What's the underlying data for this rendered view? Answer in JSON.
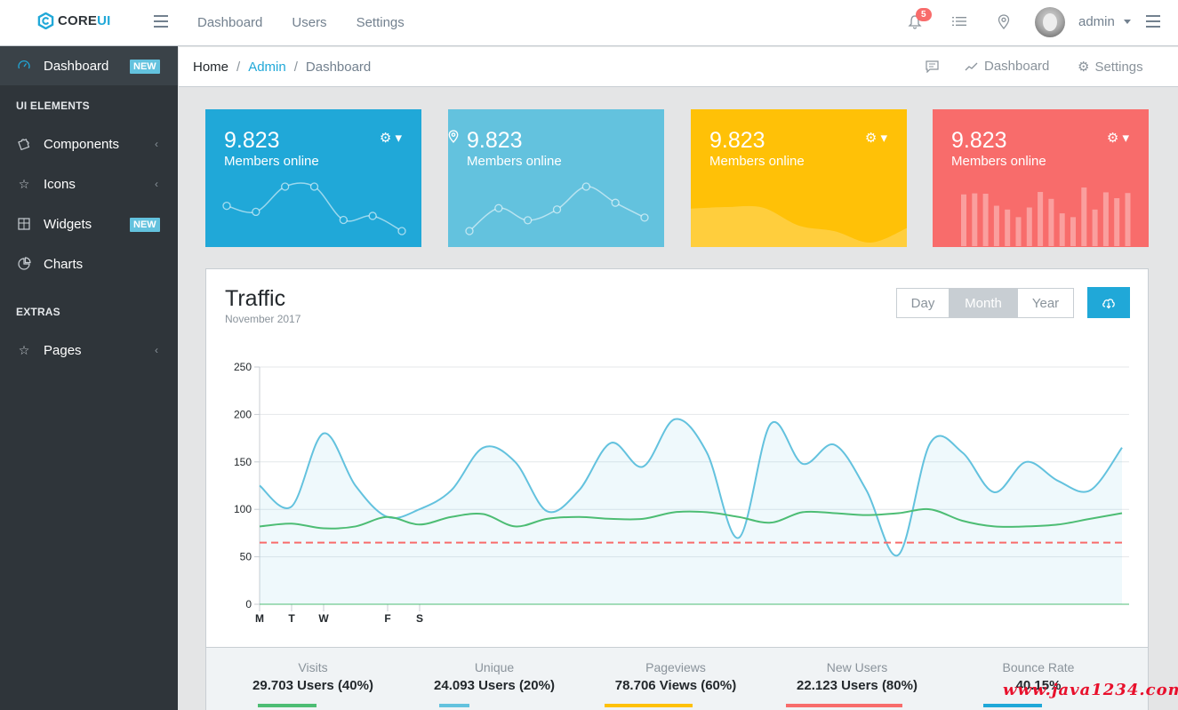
{
  "brand": {
    "name": "CORE",
    "suffix": "UI"
  },
  "topnav": [
    "Dashboard",
    "Users",
    "Settings"
  ],
  "header": {
    "notification_count": "5",
    "user": "admin"
  },
  "sidebar": {
    "items": [
      {
        "label": "Dashboard",
        "badge": "NEW"
      },
      {
        "title": "UI ELEMENTS"
      },
      {
        "label": "Components"
      },
      {
        "label": "Icons"
      },
      {
        "label": "Widgets",
        "badge": "NEW"
      },
      {
        "label": "Charts"
      },
      {
        "title": "EXTRAS"
      },
      {
        "label": "Pages"
      }
    ]
  },
  "breadcrumb": {
    "home": "Home",
    "admin": "Admin",
    "current": "Dashboard",
    "menu_dashboard": "Dashboard",
    "menu_settings": "Settings"
  },
  "cards": [
    {
      "value": "9.823",
      "label": "Members online",
      "color": "#20a8d8",
      "data": [
        65,
        59,
        84,
        84,
        51,
        55,
        40
      ]
    },
    {
      "value": "9.823",
      "label": "Members online",
      "color": "#63c2de",
      "data": [
        1,
        18,
        9,
        17,
        34,
        22,
        11
      ]
    },
    {
      "value": "9.823",
      "label": "Members online",
      "color": "#ffc107",
      "data": [
        78,
        81,
        80,
        45,
        34,
        12,
        40
      ]
    },
    {
      "value": "9.823",
      "label": "Members online",
      "color": "#f86c6b",
      "data": [
        78,
        81,
        80,
        45,
        34,
        12,
        40,
        85,
        65,
        23,
        12,
        98,
        34,
        84,
        67,
        82
      ]
    }
  ],
  "traffic": {
    "title": "Traffic",
    "subtitle": "November 2017",
    "buttons": [
      "Day",
      "Month",
      "Year"
    ],
    "active_button": "Month"
  },
  "chart_data": {
    "type": "line",
    "yticks": [
      0,
      50,
      100,
      150,
      200,
      250
    ],
    "xticks": [
      "M",
      "T",
      "W",
      "F",
      "S"
    ],
    "ylim": [
      0,
      250
    ],
    "series": [
      {
        "color": "#63c2de",
        "values": [
          125,
          103,
          180,
          125,
          92,
          100,
          120,
          165,
          150,
          98,
          120,
          170,
          145,
          195,
          160,
          70,
          190,
          148,
          168,
          120,
          52,
          170,
          160,
          118,
          150,
          130,
          120,
          165
        ]
      },
      {
        "color": "#4dbd74",
        "values": [
          82,
          85,
          80,
          82,
          92,
          84,
          92,
          95,
          82,
          90,
          92,
          90,
          90,
          97,
          97,
          92,
          86,
          97,
          96,
          94,
          96,
          100,
          88,
          82,
          82,
          84,
          90,
          96
        ]
      },
      {
        "color": "#f86c6b",
        "dashed": true,
        "values": [
          65,
          65,
          65,
          65,
          65,
          65,
          65,
          65,
          65,
          65,
          65,
          65,
          65,
          65,
          65,
          65,
          65,
          65,
          65,
          65,
          65,
          65,
          65,
          65,
          65,
          65,
          65,
          65
        ]
      }
    ]
  },
  "stats": [
    {
      "label": "Visits",
      "value": "29.703 Users (40%)",
      "color": "#4dbd74"
    },
    {
      "label": "Unique",
      "value": "24.093 Users (20%)",
      "color": "#63c2de"
    },
    {
      "label": "Pageviews",
      "value": "78.706 Views (60%)",
      "color": "#ffc107"
    },
    {
      "label": "New Users",
      "value": "22.123 Users (80%)",
      "color": "#f86c6b"
    },
    {
      "label": "Bounce Rate",
      "value": "40.15%",
      "color": "#20a8d8"
    }
  ],
  "watermark": "www.java1234.com"
}
